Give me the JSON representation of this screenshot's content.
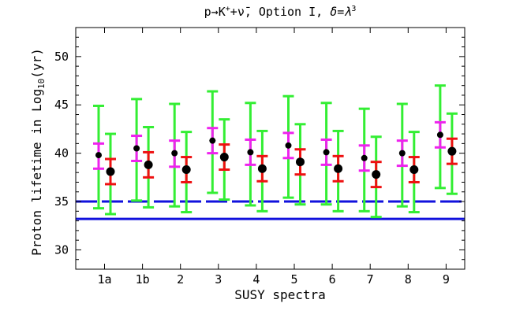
{
  "chart_data": {
    "type": "scatter",
    "title_prefix": "p→K",
    "title_sup1": "+",
    "title_mid": "+",
    "title_nu": "ν̄",
    "title_suffix": ", Option I, ",
    "title_delta": "δ=λ",
    "title_sup2": "3",
    "xlabel": "SUSY spectra",
    "ylabel_prefix": "Proton lifetime in Log",
    "ylabel_sub": "10",
    "ylabel_suffix": "(yr)",
    "categories": [
      "1a",
      "1b",
      "2",
      "3",
      "4",
      "5",
      "6",
      "7",
      "8",
      "9"
    ],
    "yticks": [
      "30",
      "35",
      "40",
      "45",
      "50"
    ],
    "ylim": [
      28,
      53
    ],
    "grid": false,
    "limit_solid": 33.2,
    "limit_dashed": 35.0,
    "series": [
      {
        "color": "#000000",
        "points": [
          39.8,
          40.5,
          40.0,
          41.3,
          40.1,
          40.8,
          40.1,
          39.5,
          40.0,
          41.9
        ],
        "inner": [
          [
            38.4,
            41.0
          ],
          [
            39.2,
            41.8
          ],
          [
            38.6,
            41.3
          ],
          [
            40.0,
            42.6
          ],
          [
            38.8,
            41.4
          ],
          [
            39.5,
            42.1
          ],
          [
            38.8,
            41.4
          ],
          [
            38.2,
            40.8
          ],
          [
            38.7,
            41.3
          ],
          [
            40.6,
            43.2
          ]
        ],
        "outer": [
          [
            34.3,
            44.9
          ],
          [
            35.1,
            45.6
          ],
          [
            34.5,
            45.1
          ],
          [
            35.9,
            46.4
          ],
          [
            34.6,
            45.2
          ],
          [
            35.4,
            45.9
          ],
          [
            34.7,
            45.2
          ],
          [
            34.0,
            44.6
          ],
          [
            34.5,
            45.1
          ],
          [
            36.4,
            47.0
          ]
        ]
      },
      {
        "color": "#000000",
        "points": [
          38.1,
          38.8,
          38.3,
          39.6,
          38.4,
          39.1,
          38.4,
          37.8,
          38.3,
          40.2
        ],
        "inner": [
          [
            36.8,
            39.4
          ],
          [
            37.5,
            40.1
          ],
          [
            37.0,
            39.6
          ],
          [
            38.3,
            40.9
          ],
          [
            37.1,
            39.7
          ],
          [
            37.8,
            40.4
          ],
          [
            37.1,
            39.7
          ],
          [
            36.5,
            39.1
          ],
          [
            37.0,
            39.6
          ],
          [
            38.9,
            41.5
          ]
        ],
        "outer": [
          [
            33.7,
            42.0
          ],
          [
            34.4,
            42.7
          ],
          [
            33.9,
            42.2
          ],
          [
            35.2,
            43.5
          ],
          [
            34.0,
            42.3
          ],
          [
            34.7,
            43.0
          ],
          [
            34.0,
            42.3
          ],
          [
            33.4,
            41.7
          ],
          [
            33.9,
            42.2
          ],
          [
            35.8,
            44.1
          ]
        ]
      }
    ],
    "colors": {
      "outer_bar": "#33ee33",
      "inner_bar_first": "#ee22ee",
      "inner_bar_second": "#ee1111",
      "limit_line": "#1111dd",
      "point": "#000000"
    }
  }
}
